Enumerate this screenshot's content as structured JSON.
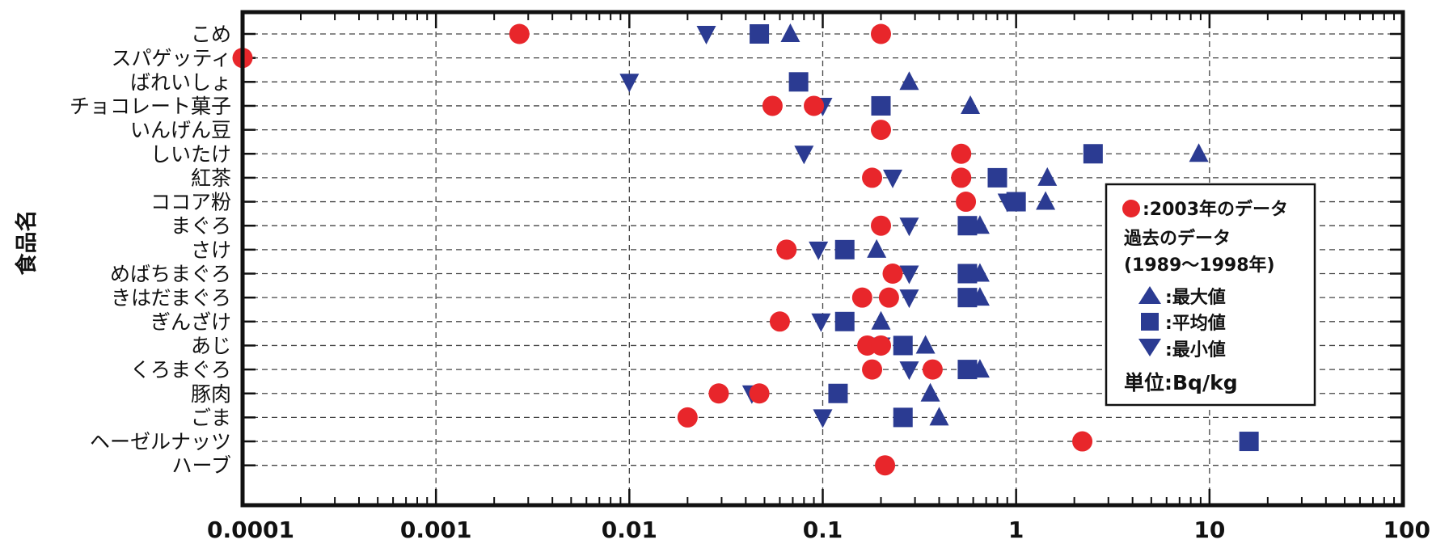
{
  "chart_data": {
    "type": "scatter",
    "xscale": "log",
    "xlim": [
      0.0001,
      100
    ],
    "x_tick_labels": [
      "0.0001",
      "0.001",
      "0.01",
      "0.1",
      "1",
      "10",
      "100"
    ],
    "ylabel": "食品名",
    "categories": [
      "こめ",
      "スパゲッティ",
      "ばれいしょ",
      "チョコレート菓子",
      "いんげん豆",
      "しいたけ",
      "紅茶",
      "ココア粉",
      "まぐろ",
      "さけ",
      "めばちまぐろ",
      "きはだまぐろ",
      "ぎんざけ",
      "あじ",
      "くろまぐろ",
      "豚肉",
      "ごま",
      "ヘーゼルナッツ",
      "ハーブ"
    ],
    "grid": true,
    "series": [
      {
        "name": ":2003年のデータ",
        "marker": "circle",
        "color": "#e8262b",
        "points": [
          {
            "category": "こめ",
            "x": 0.0027
          },
          {
            "category": "こめ",
            "x": 0.2
          },
          {
            "category": "スパゲッティ",
            "x": 0.0001
          },
          {
            "category": "チョコレート菓子",
            "x": 0.055
          },
          {
            "category": "チョコレート菓子",
            "x": 0.09
          },
          {
            "category": "いんげん豆",
            "x": 0.2
          },
          {
            "category": "しいたけ",
            "x": 0.52
          },
          {
            "category": "紅茶",
            "x": 0.18
          },
          {
            "category": "紅茶",
            "x": 0.52
          },
          {
            "category": "ココア粉",
            "x": 0.55
          },
          {
            "category": "まぐろ",
            "x": 0.2
          },
          {
            "category": "さけ",
            "x": 0.065
          },
          {
            "category": "めばちまぐろ",
            "x": 0.23
          },
          {
            "category": "きはだまぐろ",
            "x": 0.16
          },
          {
            "category": "きはだまぐろ",
            "x": 0.22
          },
          {
            "category": "ぎんざけ",
            "x": 0.06
          },
          {
            "category": "あじ",
            "x": 0.17
          },
          {
            "category": "あじ",
            "x": 0.2
          },
          {
            "category": "くろまぐろ",
            "x": 0.18
          },
          {
            "category": "くろまぐろ",
            "x": 0.37
          },
          {
            "category": "豚肉",
            "x": 0.029
          },
          {
            "category": "豚肉",
            "x": 0.047
          },
          {
            "category": "ごま",
            "x": 0.02
          },
          {
            "category": "ヘーゼルナッツ",
            "x": 2.2
          },
          {
            "category": "ハーブ",
            "x": 0.21
          }
        ]
      },
      {
        "name": ":最大値",
        "marker": "triangle-up",
        "color": "#2b3b92",
        "points": [
          {
            "category": "こめ",
            "x": 0.068
          },
          {
            "category": "ばれいしょ",
            "x": 0.28
          },
          {
            "category": "チョコレート菓子",
            "x": 0.58
          },
          {
            "category": "しいたけ",
            "x": 8.8
          },
          {
            "category": "紅茶",
            "x": 1.45
          },
          {
            "category": "ココア粉",
            "x": 1.42
          },
          {
            "category": "まぐろ",
            "x": 0.65
          },
          {
            "category": "さけ",
            "x": 0.19
          },
          {
            "category": "めばちまぐろ",
            "x": 0.65
          },
          {
            "category": "きはだまぐろ",
            "x": 0.65
          },
          {
            "category": "ぎんざけ",
            "x": 0.2
          },
          {
            "category": "あじ",
            "x": 0.34
          },
          {
            "category": "くろまぐろ",
            "x": 0.65
          },
          {
            "category": "豚肉",
            "x": 0.36
          },
          {
            "category": "ごま",
            "x": 0.4
          }
        ]
      },
      {
        "name": ":平均値",
        "marker": "square",
        "color": "#2b3b92",
        "points": [
          {
            "category": "こめ",
            "x": 0.047
          },
          {
            "category": "ばれいしょ",
            "x": 0.075
          },
          {
            "category": "チョコレート菓子",
            "x": 0.2
          },
          {
            "category": "しいたけ",
            "x": 2.5
          },
          {
            "category": "紅茶",
            "x": 0.8
          },
          {
            "category": "ココア粉",
            "x": 1.0
          },
          {
            "category": "まぐろ",
            "x": 0.56
          },
          {
            "category": "さけ",
            "x": 0.13
          },
          {
            "category": "めばちまぐろ",
            "x": 0.56
          },
          {
            "category": "きはだまぐろ",
            "x": 0.56
          },
          {
            "category": "ぎんざけ",
            "x": 0.13
          },
          {
            "category": "あじ",
            "x": 0.26
          },
          {
            "category": "くろまぐろ",
            "x": 0.56
          },
          {
            "category": "豚肉",
            "x": 0.12
          },
          {
            "category": "ごま",
            "x": 0.26
          },
          {
            "category": "ヘーゼルナッツ",
            "x": 16
          }
        ]
      },
      {
        "name": ":最小値",
        "marker": "triangle-down",
        "color": "#2b3b92",
        "points": [
          {
            "category": "こめ",
            "x": 0.025
          },
          {
            "category": "ばれいしょ",
            "x": 0.01
          },
          {
            "category": "チョコレート菓子",
            "x": 0.1
          },
          {
            "category": "しいたけ",
            "x": 0.08
          },
          {
            "category": "紅茶",
            "x": 0.23
          },
          {
            "category": "ココア粉",
            "x": 0.9
          },
          {
            "category": "まぐろ",
            "x": 0.28
          },
          {
            "category": "さけ",
            "x": 0.095
          },
          {
            "category": "めばちまぐろ",
            "x": 0.28
          },
          {
            "category": "きはだまぐろ",
            "x": 0.28
          },
          {
            "category": "ぎんざけ",
            "x": 0.098
          },
          {
            "category": "あじ",
            "x": 0.2
          },
          {
            "category": "くろまぐろ",
            "x": 0.28
          },
          {
            "category": "豚肉",
            "x": 0.043
          },
          {
            "category": "ごま",
            "x": 0.1
          }
        ]
      }
    ],
    "legend": {
      "placement": "right",
      "current_label": ":2003年のデータ",
      "past_title": "過去のデータ",
      "past_period": "(1989〜1998年)",
      "max_label": ":最大値",
      "avg_label": ":平均値",
      "min_label": ":最小値",
      "unit": "単位:Bq/kg"
    }
  }
}
